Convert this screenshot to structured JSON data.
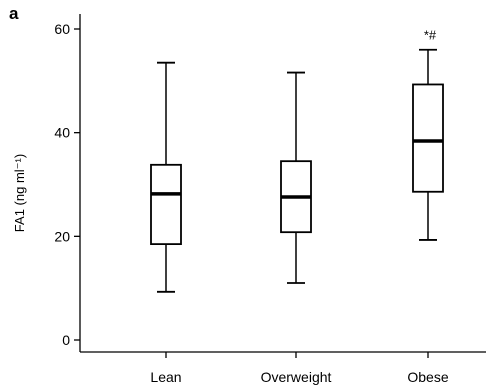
{
  "panel_label": "a",
  "chart_data": {
    "type": "box",
    "title": "",
    "ylabel": "FA1 (ng ml⁻¹)",
    "xlabel": "",
    "ylim": [
      0,
      62
    ],
    "yticks": [
      0,
      20,
      40,
      60
    ],
    "categories": [
      "Lean",
      "Overweight",
      "Obese"
    ],
    "boxes": [
      {
        "category": "Lean",
        "whisker_low": 9.3,
        "q1": 18.5,
        "median": 28.2,
        "q3": 33.8,
        "whisker_high": 53.5,
        "annotation": ""
      },
      {
        "category": "Overweight",
        "whisker_low": 11.0,
        "q1": 20.8,
        "median": 27.6,
        "q3": 34.5,
        "whisker_high": 51.6,
        "annotation": ""
      },
      {
        "category": "Obese",
        "whisker_low": 19.3,
        "q1": 28.6,
        "median": 38.4,
        "q3": 49.3,
        "whisker_high": 56.0,
        "annotation": "*#"
      }
    ],
    "grid": false,
    "legend": "none"
  }
}
